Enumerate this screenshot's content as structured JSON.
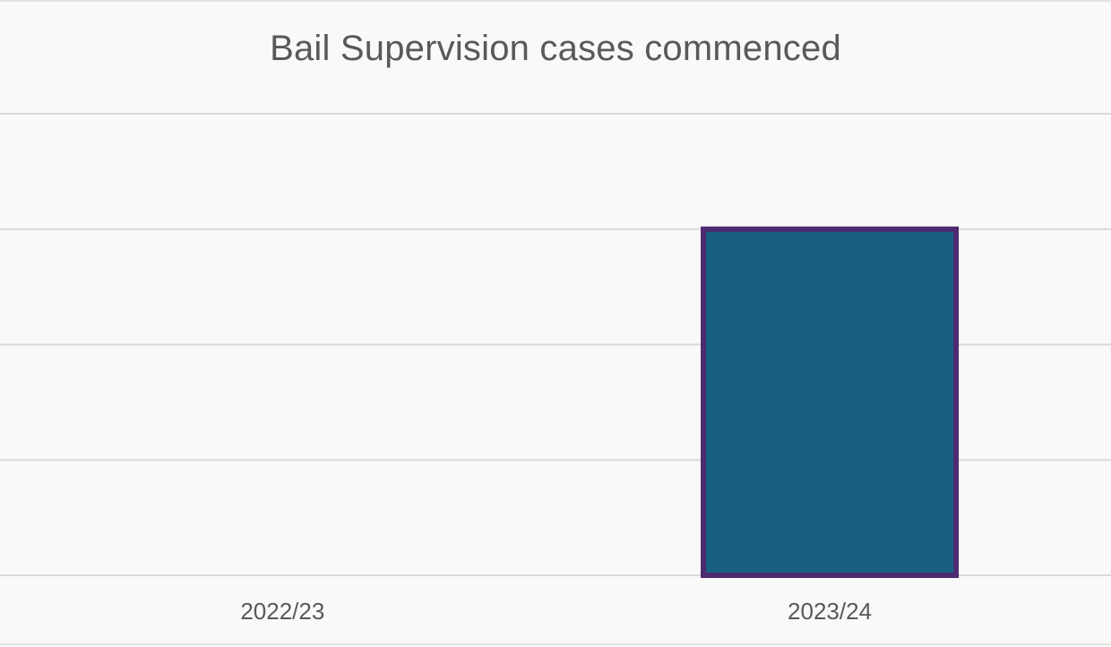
{
  "chart_data": {
    "type": "bar",
    "title": "Bail Supervision cases commenced",
    "categories": [
      "2022/23",
      "2023/24"
    ],
    "values": [
      0,
      3
    ],
    "ylim": [
      0,
      4
    ],
    "gridlines": true,
    "legend": "none",
    "xlabel": "",
    "ylabel": "",
    "colors": {
      "bar_fill": "#176083",
      "bar_outline": "#4e2a6f",
      "grid": "#d9d9d9",
      "text": "#595959",
      "background": "#f9f9f9"
    }
  }
}
